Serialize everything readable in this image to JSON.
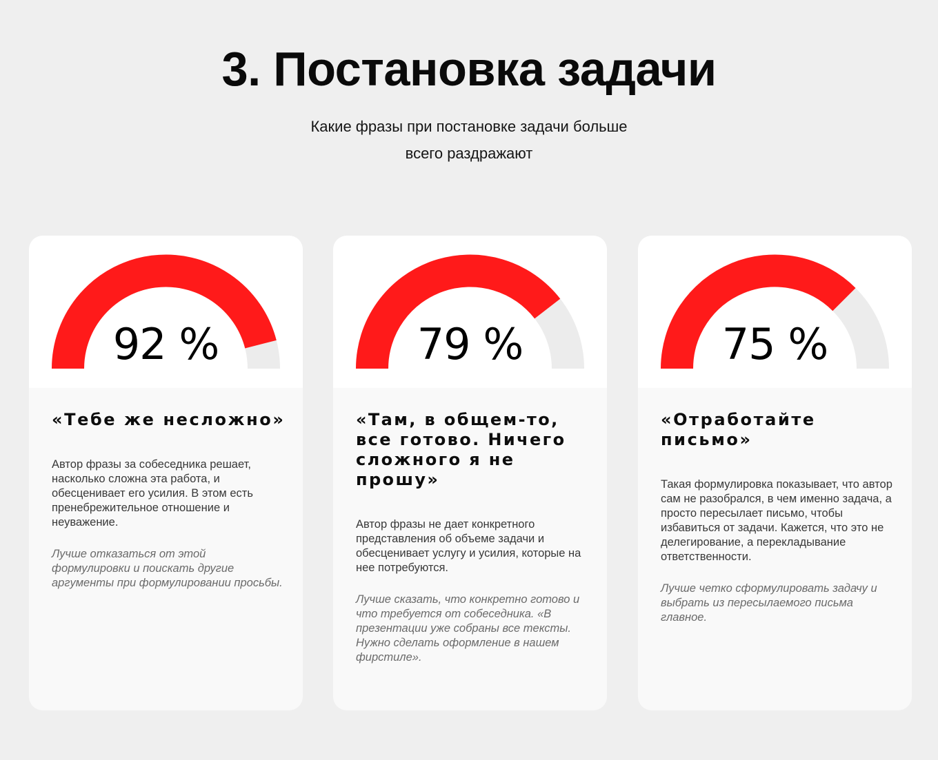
{
  "header": {
    "title": "3. Постановка задачи",
    "subtitle_line1": "Какие фразы при постановке задачи больше",
    "subtitle_line2": "всего раздражают"
  },
  "colors": {
    "accent": "#ff1a1a",
    "gauge_track": "#ececec",
    "background": "#efefef",
    "card_top": "#ffffff",
    "card_bottom": "#f9f9f9"
  },
  "cards": [
    {
      "percent": 92,
      "percent_label": "92 %",
      "title": "«Тебе же несложно»",
      "description": "Автор фразы за собеседника решает, насколько сложна эта работа, и обесценивает его усилия. В этом есть пренебрежительное отношение и неуважение.",
      "advice": "Лучше отказаться от этой формулировки и поискать другие аргументы при формулировании просьбы."
    },
    {
      "percent": 79,
      "percent_label": "79 %",
      "title": "«Там, в общем-то, все готово. Ничего сложного я не прошу»",
      "description": "Автор фразы не дает конкретного представления об объеме задачи и обесценивает услугу и усилия, которые на нее потребуются.",
      "advice": "Лучше сказать, что конкретно готово и что требуется от собеседника. «В презентации уже собраны все тексты. Нужно сделать оформление в нашем фирстиле»."
    },
    {
      "percent": 75,
      "percent_label": "75 %",
      "title": "«Отработайте письмо»",
      "description": "Такая формулировка показывает, что автор сам не разобрался, в чем именно задача, а просто пересылает письмо, чтобы избавиться от задачи. Кажется, что это не делегирование, а перекладывание ответственности.",
      "advice": "Лучше четко сформулировать задачу и выбрать из пересылаемого письма главное."
    }
  ]
}
